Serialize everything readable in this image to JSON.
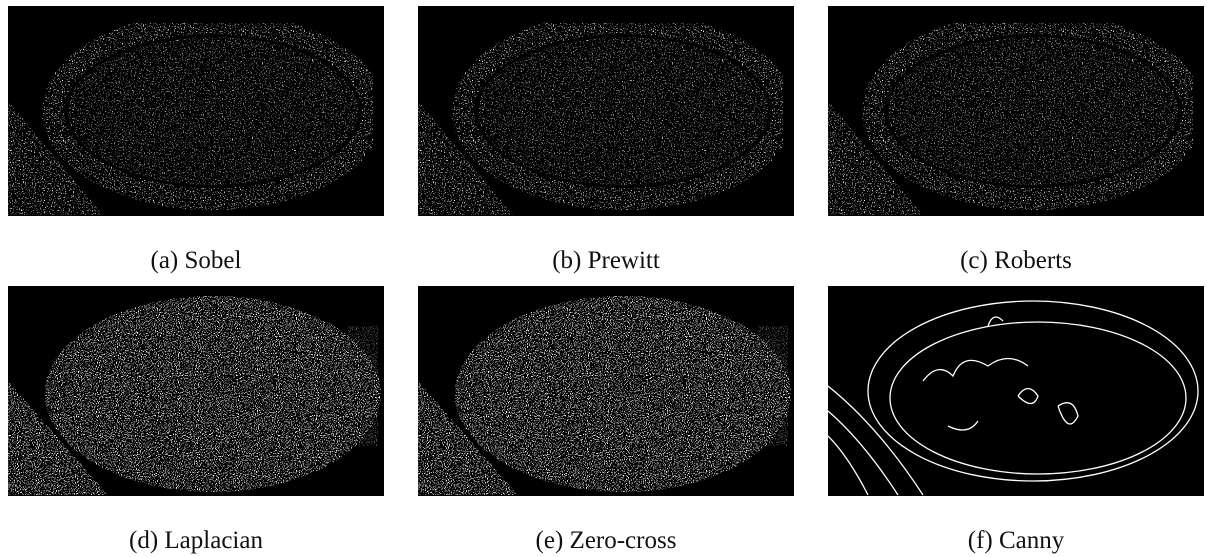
{
  "figure": {
    "panels": [
      {
        "caption": "(a) Sobel"
      },
      {
        "caption": "(b) Prewitt"
      },
      {
        "caption": "(c) Roberts"
      },
      {
        "caption": "(d) Laplacian"
      },
      {
        "caption": "(e) Zero-cross"
      },
      {
        "caption": "(f) Canny"
      }
    ]
  }
}
